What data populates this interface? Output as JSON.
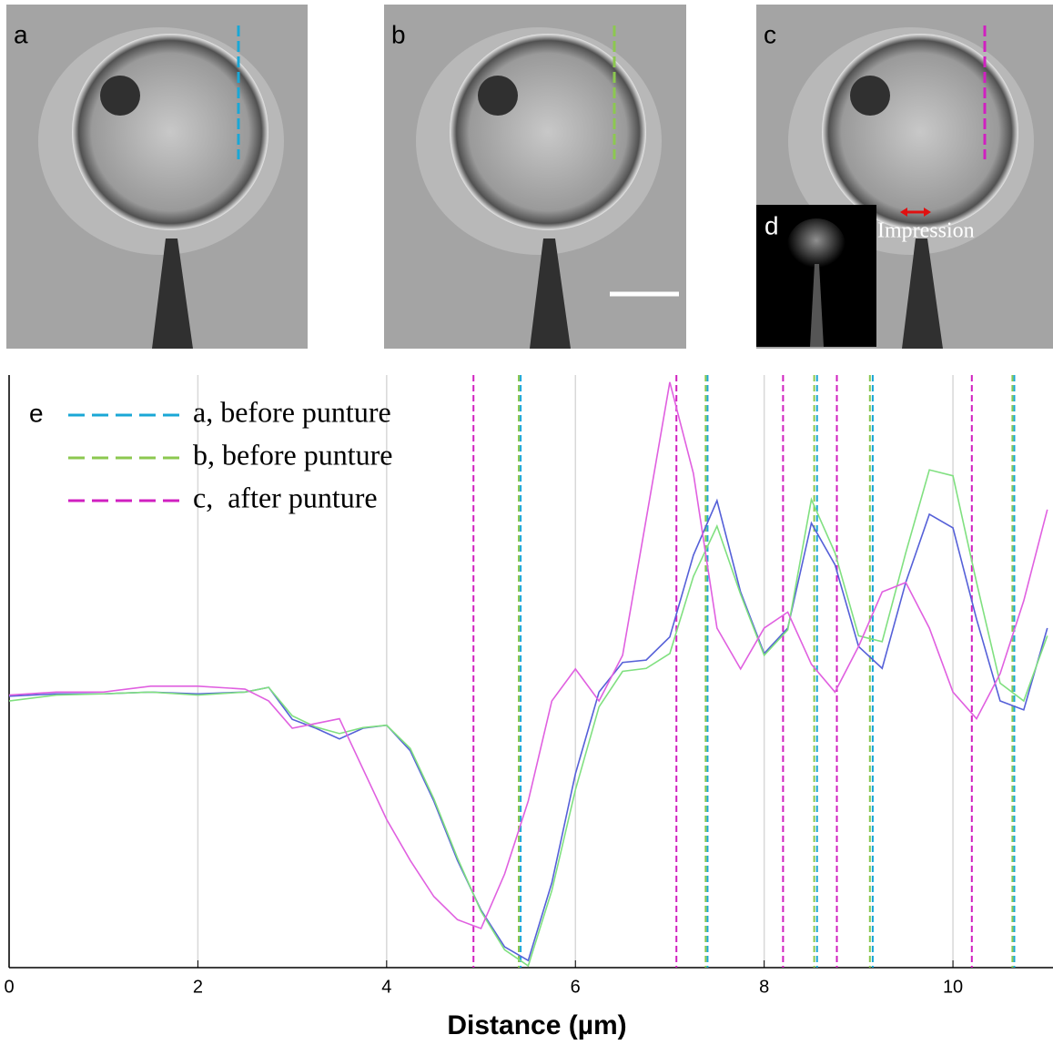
{
  "panels": {
    "a": "a",
    "b": "b",
    "c": "c",
    "d": "d",
    "impression": "Impression"
  },
  "chart_data": {
    "type": "line",
    "panel_label": "e",
    "xlabel": "Distance (µm)",
    "xlim": [
      0,
      11.06
    ],
    "ylim": [
      0,
      100
    ],
    "xticks": [
      0,
      2,
      4,
      6,
      8,
      10
    ],
    "grid": true,
    "x": [
      0,
      0.5,
      1,
      1.5,
      2,
      2.5,
      2.75,
      3,
      3.25,
      3.5,
      3.75,
      4,
      4.25,
      4.5,
      4.75,
      5,
      5.25,
      5.5,
      5.75,
      6,
      6.25,
      6.5,
      6.75,
      7,
      7.25,
      7.5,
      7.75,
      8,
      8.25,
      8.5,
      8.75,
      9,
      9.25,
      9.5,
      9.75,
      10,
      10.25,
      10.5,
      10.75,
      11
    ],
    "series": [
      {
        "name": "a, before punture",
        "color": "#5560d8",
        "marker_color": "#1aa7d6",
        "values": [
          45.8,
          46.2,
          46.2,
          46.5,
          46.2,
          46.5,
          47.3,
          41.9,
          40.4,
          38.6,
          40.4,
          40.9,
          36.6,
          28.1,
          18.1,
          9.7,
          3.5,
          1.2,
          14.3,
          32.7,
          46.5,
          51.5,
          51.9,
          55.8,
          69.6,
          78.8,
          63.4,
          53,
          57.3,
          75,
          68,
          54.2,
          50.5,
          65,
          76.5,
          74.2,
          58.8,
          45,
          43.5,
          57.3
        ],
        "vlines": [
          5.42,
          7.4,
          8.56,
          9.15,
          10.65
        ]
      },
      {
        "name": "b, before punture",
        "color": "#80e080",
        "marker_color": "#8cc850",
        "values": [
          45,
          46,
          46.2,
          46.5,
          46,
          46.5,
          47.3,
          42.5,
          40.6,
          39.5,
          40.5,
          40.9,
          37,
          28.5,
          18.5,
          9.5,
          3,
          0.3,
          13,
          30,
          44,
          50,
          50.5,
          53,
          66,
          74.5,
          63,
          52.7,
          57,
          79,
          70,
          56,
          55,
          70,
          84,
          83,
          65,
          48,
          45,
          56
        ],
        "vlines": [
          5.4,
          7.38,
          8.53,
          9.12,
          10.63
        ]
      },
      {
        "name": "c,  after punture",
        "color": "#e060e0",
        "marker_color": "#d020c0",
        "values": [
          46,
          46.5,
          46.5,
          47.5,
          47.5,
          47,
          45,
          40.4,
          41.2,
          42,
          33.5,
          25,
          18.1,
          12,
          8.1,
          6.6,
          15.8,
          28.1,
          45,
          50.4,
          45,
          52.7,
          75.7,
          98.8,
          83.4,
          57.3,
          50.4,
          57.3,
          60,
          51.2,
          46.5,
          54.2,
          63.4,
          65,
          57.3,
          46.5,
          42,
          49.6,
          61.9,
          77.3
        ],
        "vlines": [
          4.92,
          7.07,
          8.2,
          8.77,
          10.2
        ]
      }
    ]
  }
}
